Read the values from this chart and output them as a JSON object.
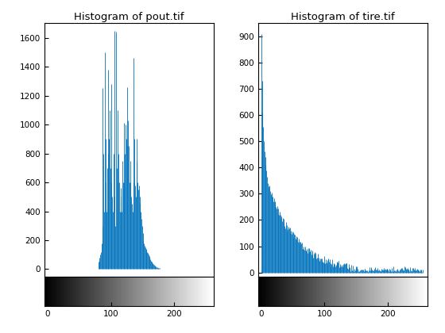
{
  "title1": "Histogram of pout.tif",
  "title2": "Histogram of tire.tif",
  "stem_color": "#0072BD",
  "bg_color": "#ffffff",
  "pout_ylim": [
    -50,
    1700
  ],
  "tire_ylim": [
    -15,
    950
  ],
  "pout_yticks": [
    0,
    200,
    400,
    600,
    800,
    1000,
    1200,
    1400,
    1600
  ],
  "tire_yticks": [
    0,
    100,
    200,
    300,
    400,
    500,
    600,
    700,
    800,
    900
  ],
  "xlim": [
    -5,
    262
  ],
  "xticks": [
    0,
    100,
    200
  ]
}
